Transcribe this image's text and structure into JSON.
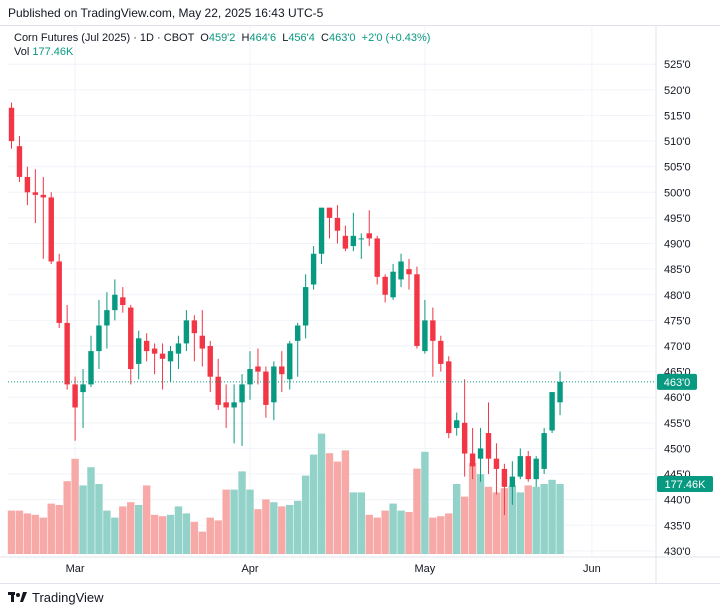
{
  "header": {
    "published": "Published on TradingView.com, May 22, 2025 16:43 UTC-5"
  },
  "legend": {
    "symbol": "Corn Futures (Jul 2025) · 1D · CBOT",
    "open_label": "O",
    "open": "459'2",
    "high_label": "H",
    "high": "464'6",
    "low_label": "L",
    "low": "456'4",
    "close_label": "C",
    "close": "463'0",
    "change": "+2'0 (+0.43%)",
    "vol_label": "Vol",
    "vol": "177.46K"
  },
  "footer": {
    "brand": "TradingView"
  },
  "colors": {
    "up": "#089981",
    "down": "#f23645",
    "vol_up": "#92d2c9",
    "vol_down": "#f7a9a7"
  },
  "chart_data": {
    "type": "candlestick",
    "price_labels": {
      "last_price": "463'0",
      "last_volume": "177.46K"
    },
    "y_ticks": [
      "525'0",
      "520'0",
      "515'0",
      "510'0",
      "505'0",
      "500'0",
      "495'0",
      "490'0",
      "485'0",
      "480'0",
      "475'0",
      "470'0",
      "465'0",
      "460'0",
      "455'0",
      "450'0",
      "445'0",
      "440'0",
      "435'0",
      "430'0"
    ],
    "ylim": [
      429,
      527
    ],
    "x_ticks": [
      {
        "label": "Mar",
        "index": 8
      },
      {
        "label": "Apr",
        "index": 30
      },
      {
        "label": "May",
        "index": 52
      },
      {
        "label": "Jun",
        "index": 73
      }
    ],
    "volume_scale_max": 1.0,
    "candles": [
      {
        "o": 516.5,
        "h": 517.5,
        "l": 508.5,
        "c": 510.0,
        "v": 0.31
      },
      {
        "o": 509.0,
        "h": 511.0,
        "l": 502.0,
        "c": 503.0,
        "v": 0.31
      },
      {
        "o": 503.0,
        "h": 505.0,
        "l": 497.5,
        "c": 500.0,
        "v": 0.29
      },
      {
        "o": 500.0,
        "h": 504.5,
        "l": 494.0,
        "c": 499.5,
        "v": 0.28
      },
      {
        "o": 499.5,
        "h": 503.0,
        "l": 487.0,
        "c": 499.0,
        "v": 0.26
      },
      {
        "o": 499.0,
        "h": 500.0,
        "l": 486.0,
        "c": 486.5,
        "v": 0.36
      },
      {
        "o": 486.5,
        "h": 488.0,
        "l": 473.5,
        "c": 474.5,
        "v": 0.35
      },
      {
        "o": 474.5,
        "h": 478.0,
        "l": 461.5,
        "c": 462.5,
        "v": 0.52
      },
      {
        "o": 462.5,
        "h": 464.0,
        "l": 451.5,
        "c": 458.0,
        "v": 0.68
      },
      {
        "o": 461.0,
        "h": 465.5,
        "l": 454.0,
        "c": 462.5,
        "v": 0.49
      },
      {
        "o": 462.5,
        "h": 472.0,
        "l": 462.0,
        "c": 469.0,
        "v": 0.62
      },
      {
        "o": 469.0,
        "h": 479.0,
        "l": 465.5,
        "c": 474.0,
        "v": 0.5
      },
      {
        "o": 474.0,
        "h": 480.5,
        "l": 469.5,
        "c": 477.0,
        "v": 0.31
      },
      {
        "o": 477.0,
        "h": 483.0,
        "l": 475.0,
        "c": 480.0,
        "v": 0.26
      },
      {
        "o": 479.5,
        "h": 481.5,
        "l": 476.5,
        "c": 478.0,
        "v": 0.34
      },
      {
        "o": 477.5,
        "h": 478.0,
        "l": 462.5,
        "c": 465.5,
        "v": 0.37
      },
      {
        "o": 466.5,
        "h": 473.0,
        "l": 463.5,
        "c": 471.5,
        "v": 0.35
      },
      {
        "o": 471.0,
        "h": 472.5,
        "l": 467.0,
        "c": 469.0,
        "v": 0.49
      },
      {
        "o": 469.5,
        "h": 470.5,
        "l": 464.5,
        "c": 468.5,
        "v": 0.28
      },
      {
        "o": 468.5,
        "h": 470.5,
        "l": 461.5,
        "c": 467.5,
        "v": 0.27
      },
      {
        "o": 467.0,
        "h": 470.0,
        "l": 463.0,
        "c": 469.0,
        "v": 0.28
      },
      {
        "o": 468.5,
        "h": 472.0,
        "l": 465.5,
        "c": 470.5,
        "v": 0.34
      },
      {
        "o": 470.5,
        "h": 477.0,
        "l": 469.0,
        "c": 475.0,
        "v": 0.29
      },
      {
        "o": 475.0,
        "h": 476.0,
        "l": 467.0,
        "c": 472.5,
        "v": 0.23
      },
      {
        "o": 472.0,
        "h": 477.0,
        "l": 466.0,
        "c": 469.5,
        "v": 0.16
      },
      {
        "o": 470.0,
        "h": 471.0,
        "l": 461.0,
        "c": 464.0,
        "v": 0.26
      },
      {
        "o": 464.0,
        "h": 467.5,
        "l": 457.5,
        "c": 458.5,
        "v": 0.24
      },
      {
        "o": 459.0,
        "h": 462.5,
        "l": 454.0,
        "c": 458.0,
        "v": 0.46
      },
      {
        "o": 458.0,
        "h": 462.5,
        "l": 451.0,
        "c": 459.0,
        "v": 0.46
      },
      {
        "o": 459.0,
        "h": 464.5,
        "l": 450.5,
        "c": 462.5,
        "v": 0.59
      },
      {
        "o": 462.5,
        "h": 469.0,
        "l": 459.5,
        "c": 465.5,
        "v": 0.46
      },
      {
        "o": 466.0,
        "h": 469.5,
        "l": 462.5,
        "c": 465.0,
        "v": 0.32
      },
      {
        "o": 465.0,
        "h": 466.0,
        "l": 456.0,
        "c": 458.5,
        "v": 0.39
      },
      {
        "o": 459.0,
        "h": 467.0,
        "l": 455.5,
        "c": 466.0,
        "v": 0.37
      },
      {
        "o": 466.0,
        "h": 469.0,
        "l": 461.0,
        "c": 464.5,
        "v": 0.34
      },
      {
        "o": 463.5,
        "h": 471.0,
        "l": 461.5,
        "c": 470.5,
        "v": 0.35
      },
      {
        "o": 471.0,
        "h": 474.5,
        "l": 464.0,
        "c": 474.0,
        "v": 0.38
      },
      {
        "o": 474.0,
        "h": 484.0,
        "l": 471.5,
        "c": 481.5,
        "v": 0.56
      },
      {
        "o": 482.0,
        "h": 489.5,
        "l": 481.0,
        "c": 488.0,
        "v": 0.71
      },
      {
        "o": 488.0,
        "h": 497.0,
        "l": 486.0,
        "c": 497.0,
        "v": 0.86
      },
      {
        "o": 497.0,
        "h": 497.0,
        "l": 491.0,
        "c": 495.0,
        "v": 0.72
      },
      {
        "o": 495.0,
        "h": 497.5,
        "l": 490.0,
        "c": 492.5,
        "v": 0.66
      },
      {
        "o": 491.5,
        "h": 493.5,
        "l": 488.5,
        "c": 489.0,
        "v": 0.74
      },
      {
        "o": 489.5,
        "h": 496.0,
        "l": 488.5,
        "c": 491.5,
        "v": 0.44
      },
      {
        "o": 491.0,
        "h": 492.0,
        "l": 487.0,
        "c": 491.0,
        "v": 0.44
      },
      {
        "o": 492.0,
        "h": 496.5,
        "l": 489.5,
        "c": 491.0,
        "v": 0.28
      },
      {
        "o": 491.0,
        "h": 491.5,
        "l": 482.0,
        "c": 483.5,
        "v": 0.26
      },
      {
        "o": 483.5,
        "h": 484.0,
        "l": 478.5,
        "c": 480.0,
        "v": 0.31
      },
      {
        "o": 479.5,
        "h": 486.0,
        "l": 479.0,
        "c": 484.5,
        "v": 0.36
      },
      {
        "o": 483.0,
        "h": 488.0,
        "l": 481.5,
        "c": 486.5,
        "v": 0.31
      },
      {
        "o": 485.0,
        "h": 487.0,
        "l": 481.0,
        "c": 484.0,
        "v": 0.3
      },
      {
        "o": 484.0,
        "h": 485.5,
        "l": 469.5,
        "c": 470.0,
        "v": 0.61
      },
      {
        "o": 469.0,
        "h": 479.0,
        "l": 468.5,
        "c": 475.0,
        "v": 0.73
      },
      {
        "o": 475.0,
        "h": 477.5,
        "l": 464.0,
        "c": 471.0,
        "v": 0.26
      },
      {
        "o": 471.0,
        "h": 472.0,
        "l": 465.0,
        "c": 466.5,
        "v": 0.27
      },
      {
        "o": 467.0,
        "h": 468.0,
        "l": 452.0,
        "c": 453.0,
        "v": 0.29
      },
      {
        "o": 454.0,
        "h": 457.0,
        "l": 452.5,
        "c": 455.5,
        "v": 0.5
      },
      {
        "o": 455.0,
        "h": 463.5,
        "l": 444.5,
        "c": 449.0,
        "v": 0.41
      },
      {
        "o": 449.0,
        "h": 454.0,
        "l": 444.0,
        "c": 446.5,
        "v": 0.65
      },
      {
        "o": 448.0,
        "h": 454.0,
        "l": 443.5,
        "c": 450.0,
        "v": 0.57
      },
      {
        "o": 453.0,
        "h": 459.0,
        "l": 445.0,
        "c": 448.0,
        "v": 0.48
      },
      {
        "o": 448.0,
        "h": 451.0,
        "l": 441.0,
        "c": 446.0,
        "v": 0.44
      },
      {
        "o": 446.0,
        "h": 447.0,
        "l": 437.0,
        "c": 442.5,
        "v": 0.47
      },
      {
        "o": 442.5,
        "h": 447.5,
        "l": 439.0,
        "c": 444.5,
        "v": 0.49
      },
      {
        "o": 444.5,
        "h": 450.0,
        "l": 444.0,
        "c": 448.5,
        "v": 0.44
      },
      {
        "o": 448.5,
        "h": 449.5,
        "l": 443.5,
        "c": 444.0,
        "v": 0.49
      },
      {
        "o": 444.0,
        "h": 448.5,
        "l": 442.5,
        "c": 448.0,
        "v": 0.48
      },
      {
        "o": 446.0,
        "h": 454.0,
        "l": 445.0,
        "c": 453.0,
        "v": 0.5
      },
      {
        "o": 453.5,
        "h": 461.0,
        "l": 453.0,
        "c": 461.0,
        "v": 0.53
      },
      {
        "o": 459.0,
        "h": 465.0,
        "l": 456.5,
        "c": 463.0,
        "v": 0.5
      }
    ]
  }
}
